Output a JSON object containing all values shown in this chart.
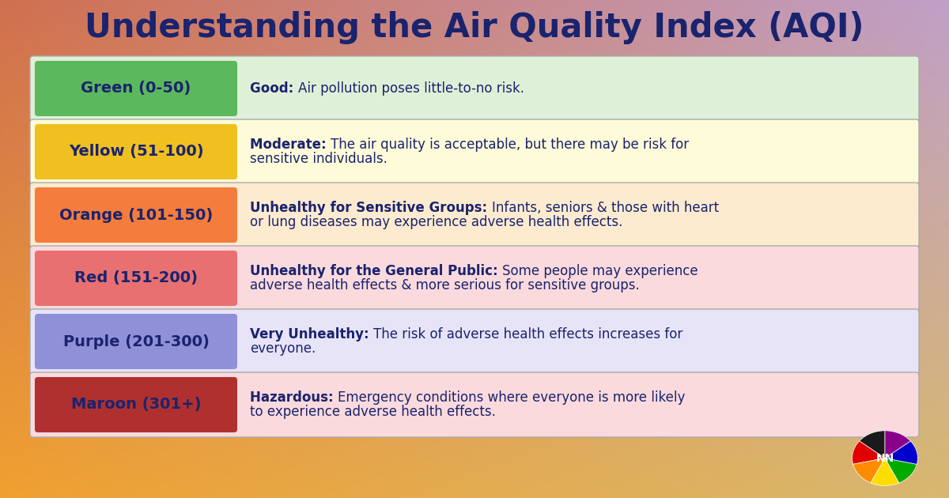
{
  "title": "Understanding the Air Quality Index (AQI)",
  "title_color": "#1a236e",
  "title_fontsize": 30,
  "rows": [
    {
      "label": "Green (0-50)",
      "label_color": "#1a236e",
      "box_color": "#5cb85c",
      "bg_color": "#dff0d8",
      "bold_text": "Good:",
      "description": "Air pollution poses little-to-no risk.",
      "text_color": "#1a236e"
    },
    {
      "label": "Yellow (51-100)",
      "label_color": "#1a236e",
      "box_color": "#f0c020",
      "bg_color": "#fefbd8",
      "bold_text": "Moderate:",
      "description": "The air quality is acceptable, but there may be risk for\nsensitive individuals.",
      "text_color": "#1a236e"
    },
    {
      "label": "Orange (101-150)",
      "label_color": "#1a236e",
      "box_color": "#f47c3c",
      "bg_color": "#fdebd0",
      "bold_text": "Unhealthy for Sensitive Groups:",
      "description": "Infants, seniors & those with heart\nor lung diseases may experience adverse health effects.",
      "text_color": "#1a236e"
    },
    {
      "label": "Red (151-200)",
      "label_color": "#1a236e",
      "box_color": "#e87070",
      "bg_color": "#fadadd",
      "bold_text": "Unhealthy for the General Public:",
      "description": "Some people may experience\nadverse health effects & more serious for sensitive groups.",
      "text_color": "#1a236e"
    },
    {
      "label": "Purple (201-300)",
      "label_color": "#1a236e",
      "box_color": "#9090d8",
      "bg_color": "#e8e4f8",
      "bold_text": "Very Unhealthy:",
      "description": "The risk of adverse health effects increases for\neveryone.",
      "text_color": "#1a236e"
    },
    {
      "label": "Maroon (301+)",
      "label_color": "#1a236e",
      "box_color": "#b03030",
      "bg_color": "#fadadd",
      "bold_text": "Hazardous:",
      "description": "Emergency conditions where everyone is more likely\nto experience adverse health effects.",
      "text_color": "#1a236e"
    }
  ],
  "bg_corners": {
    "bottom_left": "#f0a030",
    "bottom_right": "#d8b870",
    "top_left": "#d07050",
    "top_right": "#c0a0c8"
  }
}
